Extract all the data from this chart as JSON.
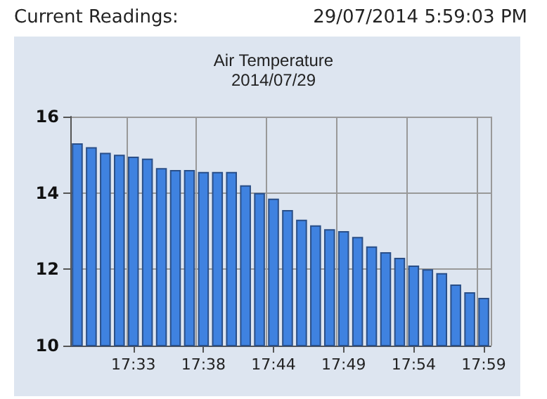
{
  "chart_data": {
    "type": "bar",
    "title": "Air Temperature",
    "subtitle": "2014/07/29",
    "annotations": [
      "Current Readings:",
      "29/07/2014 5:59:03 PM"
    ],
    "categories": [
      null,
      null,
      null,
      null,
      "17:33",
      null,
      null,
      null,
      null,
      "17:38",
      null,
      null,
      null,
      null,
      "17:44",
      null,
      null,
      null,
      null,
      "17:49",
      null,
      null,
      null,
      null,
      "17:54",
      null,
      null,
      null,
      null,
      "17:59"
    ],
    "values": [
      15.3,
      15.2,
      15.05,
      15.0,
      14.95,
      14.9,
      14.65,
      14.6,
      14.6,
      14.55,
      14.55,
      14.55,
      14.2,
      14.0,
      13.85,
      13.55,
      13.3,
      13.15,
      13.05,
      13.0,
      12.85,
      12.6,
      12.45,
      12.3,
      12.1,
      12.0,
      11.9,
      11.6,
      11.4,
      11.25
    ],
    "color": "#3f82e0",
    "ylim": [
      10,
      16
    ],
    "yticks": [
      10,
      12,
      14,
      16
    ],
    "grid": true
  }
}
